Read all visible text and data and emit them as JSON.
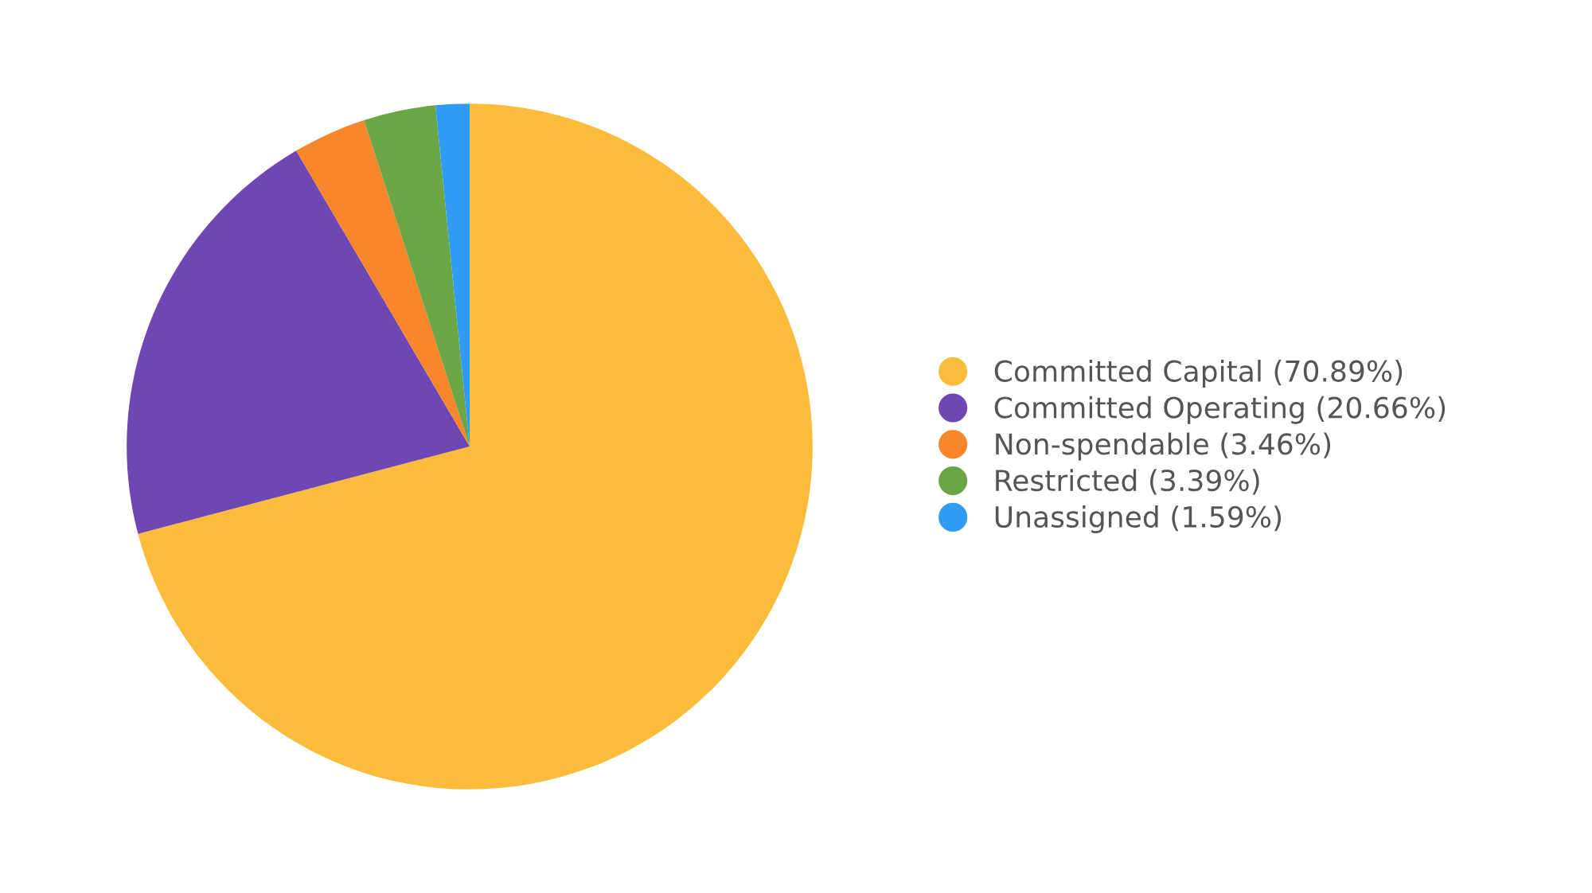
{
  "chart_data": {
    "type": "pie",
    "categories": [
      "Committed Capital (70.89%)",
      "Committed Operating (20.66%)",
      "Non-spendable (3.46%)",
      "Restricted (3.39%)",
      "Unassigned (1.59%)"
    ],
    "values": [
      70.89,
      20.66,
      3.46,
      3.39,
      1.59
    ],
    "colors": [
      "#fbbc3c",
      "#6f47b4",
      "#f8862a",
      "#6aa546",
      "#2f9bf5"
    ],
    "legend": "right"
  }
}
